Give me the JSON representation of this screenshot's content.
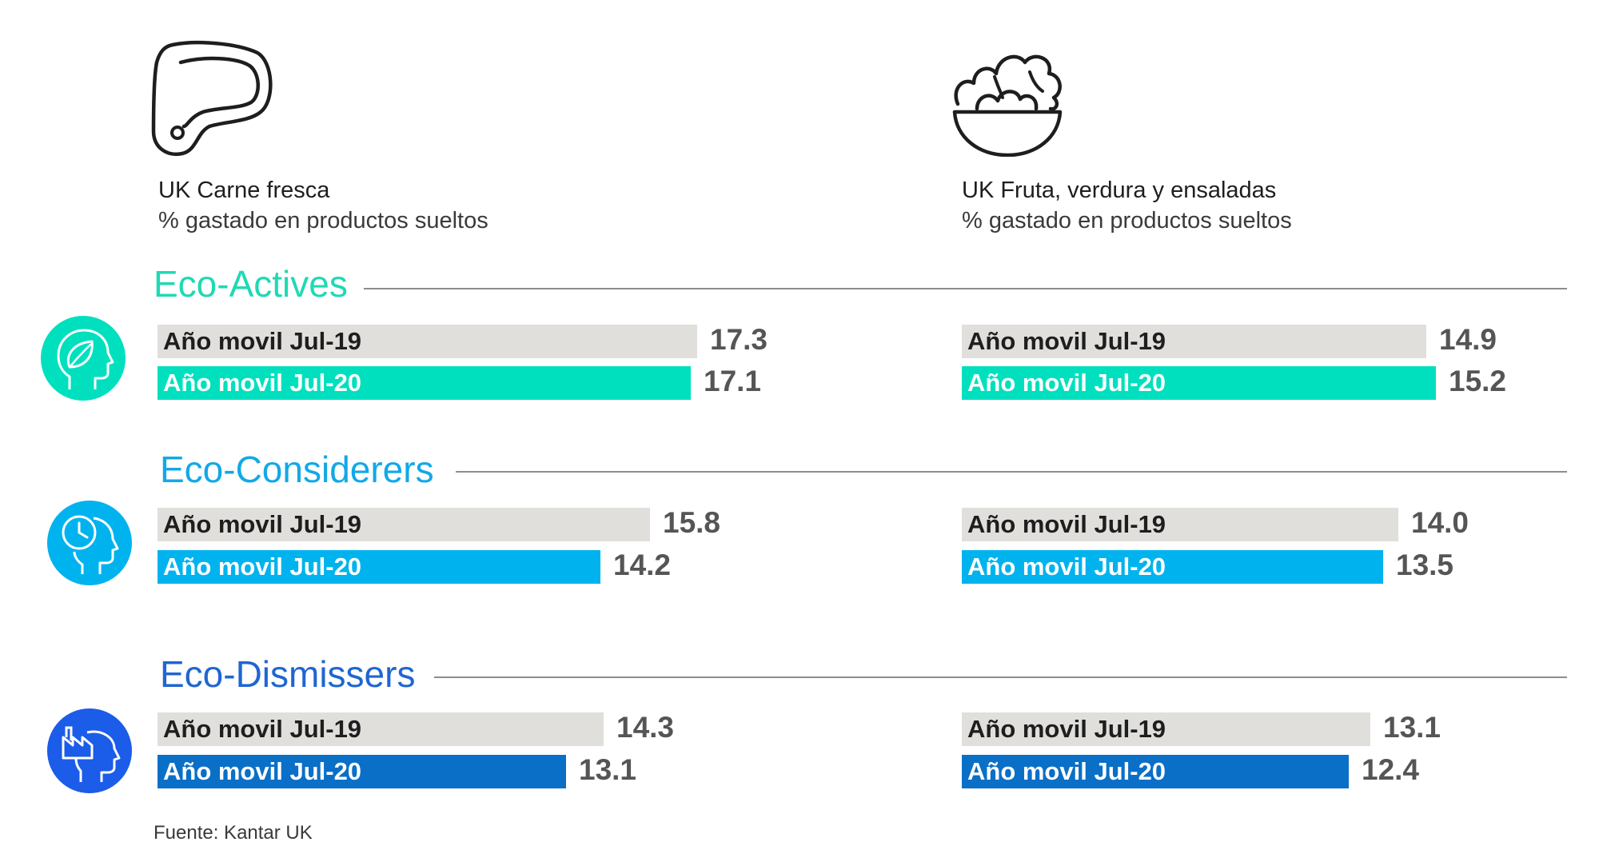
{
  "columns": [
    {
      "title": "UK Carne fresca",
      "subtitle": "% gastado en productos sueltos",
      "icon": "steak-icon"
    },
    {
      "title": "UK Fruta, verdura y ensaladas",
      "subtitle": "% gastado en productos sueltos",
      "icon": "salad-bowl-icon"
    }
  ],
  "legend": {
    "y19": "Año movil Jul-19",
    "y20": "Año movil Jul-20"
  },
  "segments": [
    {
      "name": "Eco-Actives",
      "color": "#00e0bf",
      "title_color": "#1fd9b5",
      "icon": "leaf-head-icon"
    },
    {
      "name": "Eco-Considerers",
      "color": "#00b3ee",
      "title_color": "#12a8e8",
      "icon": "clock-head-icon"
    },
    {
      "name": "Eco-Dismissers",
      "color": "#0a6fc7",
      "title_color": "#1f66d1",
      "icon": "factory-head-icon"
    }
  ],
  "chart_data": [
    {
      "type": "bar",
      "title": "UK Carne fresca",
      "subtitle": "% gastado en productos sueltos",
      "categories": [
        "Eco-Actives",
        "Eco-Considerers",
        "Eco-Dismissers"
      ],
      "series": [
        {
          "name": "Año movil Jul-19",
          "values": [
            17.3,
            15.8,
            14.3
          ]
        },
        {
          "name": "Año movil Jul-20",
          "values": [
            17.1,
            14.2,
            13.1
          ]
        }
      ]
    },
    {
      "type": "bar",
      "title": "UK Fruta, verdura y ensaladas",
      "subtitle": "% gastado en productos sueltos",
      "categories": [
        "Eco-Actives",
        "Eco-Considerers",
        "Eco-Dismissers"
      ],
      "series": [
        {
          "name": "Año movil Jul-19",
          "values": [
            14.9,
            14.0,
            13.1
          ]
        },
        {
          "name": "Año movil Jul-20",
          "values": [
            15.2,
            13.5,
            12.4
          ]
        }
      ]
    }
  ],
  "colors": {
    "bar_2019": "#e0dfdc",
    "divider": "#8d8d8d"
  },
  "source": "Fuente: Kantar UK"
}
